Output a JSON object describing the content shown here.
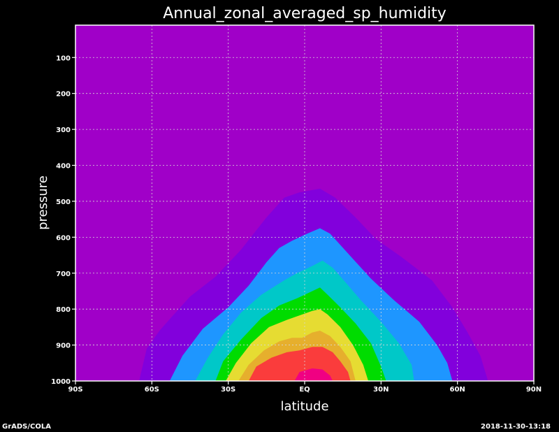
{
  "chart_data": {
    "type": "contour",
    "title": "Annual_zonal_averaged_sp_humidity",
    "xlabel": "latitude",
    "ylabel": "pressure",
    "x_ticks": [
      "90S",
      "60S",
      "30S",
      "EQ",
      "30N",
      "60N",
      "90N"
    ],
    "y_ticks": [
      100,
      200,
      300,
      400,
      500,
      600,
      700,
      800,
      900,
      1000
    ],
    "xlim": [
      -90,
      90
    ],
    "ylim": [
      1000,
      10
    ],
    "grid": true,
    "background_color": "#a000c8",
    "levels": [
      {
        "level": 1,
        "color": "#8200dc",
        "contour": [
          [
            -65,
            1000
          ],
          [
            -62,
            910
          ],
          [
            -57,
            860
          ],
          [
            -52,
            820
          ],
          [
            -45,
            765
          ],
          [
            -35,
            710
          ],
          [
            -25,
            635
          ],
          [
            -15,
            545
          ],
          [
            -8,
            490
          ],
          [
            -2,
            475
          ],
          [
            6,
            465
          ],
          [
            12,
            490
          ],
          [
            20,
            545
          ],
          [
            28,
            605
          ],
          [
            38,
            655
          ],
          [
            50,
            720
          ],
          [
            58,
            795
          ],
          [
            64,
            865
          ],
          [
            69,
            930
          ],
          [
            72,
            1000
          ]
        ]
      },
      {
        "level": 2,
        "color": "#1e96ff",
        "contour": [
          [
            -53,
            1000
          ],
          [
            -48,
            930
          ],
          [
            -40,
            855
          ],
          [
            -30,
            795
          ],
          [
            -22,
            735
          ],
          [
            -15,
            670
          ],
          [
            -10,
            630
          ],
          [
            -5,
            610
          ],
          [
            1,
            590
          ],
          [
            6,
            575
          ],
          [
            10,
            590
          ],
          [
            17,
            645
          ],
          [
            26,
            715
          ],
          [
            35,
            775
          ],
          [
            45,
            835
          ],
          [
            52,
            900
          ],
          [
            56,
            950
          ],
          [
            58,
            1000
          ]
        ]
      },
      {
        "level": 3,
        "color": "#00c8c8",
        "contour": [
          [
            -43,
            1000
          ],
          [
            -38,
            935
          ],
          [
            -32,
            870
          ],
          [
            -25,
            810
          ],
          [
            -17,
            760
          ],
          [
            -8,
            720
          ],
          [
            -3,
            700
          ],
          [
            3,
            680
          ],
          [
            7,
            665
          ],
          [
            11,
            685
          ],
          [
            16,
            725
          ],
          [
            22,
            775
          ],
          [
            30,
            835
          ],
          [
            37,
            895
          ],
          [
            42,
            955
          ],
          [
            43,
            1000
          ]
        ]
      },
      {
        "level": 4,
        "color": "#00dc00",
        "contour": [
          [
            -35,
            1000
          ],
          [
            -32,
            945
          ],
          [
            -25,
            885
          ],
          [
            -17,
            825
          ],
          [
            -10,
            790
          ],
          [
            -3,
            770
          ],
          [
            3,
            750
          ],
          [
            6,
            740
          ],
          [
            9,
            760
          ],
          [
            14,
            795
          ],
          [
            20,
            840
          ],
          [
            26,
            895
          ],
          [
            30,
            960
          ],
          [
            32,
            1000
          ]
        ]
      },
      {
        "level": 5,
        "color": "#e6dc32",
        "contour": [
          [
            -31,
            1000
          ],
          [
            -27,
            950
          ],
          [
            -21,
            895
          ],
          [
            -14,
            850
          ],
          [
            -7,
            830
          ],
          [
            -1,
            815
          ],
          [
            3,
            805
          ],
          [
            6,
            800
          ],
          [
            9,
            815
          ],
          [
            14,
            850
          ],
          [
            19,
            900
          ],
          [
            23,
            955
          ],
          [
            25,
            1000
          ]
        ]
      },
      {
        "level": 6,
        "color": "#e6af2d",
        "contour": [
          [
            -26,
            1000
          ],
          [
            -22,
            955
          ],
          [
            -16,
            915
          ],
          [
            -10,
            890
          ],
          [
            -5,
            880
          ],
          [
            -1,
            880
          ],
          [
            3,
            865
          ],
          [
            6,
            860
          ],
          [
            10,
            875
          ],
          [
            14,
            905
          ],
          [
            18,
            945
          ],
          [
            20,
            1000
          ]
        ]
      },
      {
        "level": 7,
        "color": "#fa3c3c",
        "contour": [
          [
            -22,
            1000
          ],
          [
            -19,
            960
          ],
          [
            -13,
            935
          ],
          [
            -7,
            920
          ],
          [
            -2,
            915
          ],
          [
            3,
            905
          ],
          [
            7,
            905
          ],
          [
            11,
            920
          ],
          [
            14,
            945
          ],
          [
            17,
            975
          ],
          [
            18,
            1000
          ]
        ]
      },
      {
        "level": 8,
        "color": "#f00082",
        "contour": [
          [
            -4,
            1000
          ],
          [
            -2,
            975
          ],
          [
            3,
            965
          ],
          [
            7,
            968
          ],
          [
            10,
            985
          ],
          [
            11,
            1000
          ]
        ]
      }
    ]
  },
  "footer": {
    "left": "GrADS/COLA",
    "right": "2018-11-30-13:18"
  }
}
